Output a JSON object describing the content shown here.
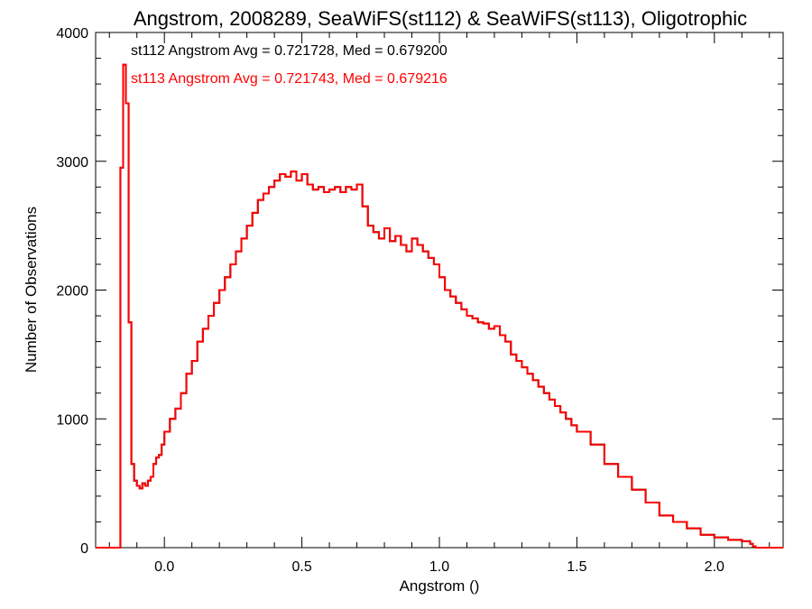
{
  "chart_data": {
    "type": "line",
    "title": "Angstrom, 2008289, SeaWiFS(st112) & SeaWiFS(st113), Oligotrophic",
    "xlabel": "Angstrom ()",
    "ylabel": "Number of Observations",
    "xlim": [
      -0.25,
      2.25
    ],
    "ylim": [
      0,
      4000
    ],
    "x_ticks": [
      0.0,
      0.5,
      1.0,
      1.5,
      2.0
    ],
    "x_tick_labels": [
      "0.0",
      "0.5",
      "1.0",
      "1.5",
      "2.0"
    ],
    "y_ticks": [
      0,
      1000,
      2000,
      3000,
      4000
    ],
    "y_tick_labels": [
      "0",
      "1000",
      "2000",
      "3000",
      "4000"
    ],
    "grid": false,
    "legend": "top-left",
    "annotations": [
      {
        "text": "st112 Angstrom Avg = 0.721728, Med = 0.679200",
        "color": "#000000"
      },
      {
        "text": "st113 Angstrom Avg = 0.721743, Med = 0.679216",
        "color": "#ff0000"
      }
    ],
    "series": [
      {
        "name": "st112",
        "color": "#000000",
        "step": true,
        "x": [
          -0.25,
          -0.17,
          -0.16,
          -0.15,
          -0.14,
          -0.13,
          -0.12,
          -0.11,
          -0.1,
          -0.09,
          -0.08,
          -0.07,
          -0.06,
          -0.05,
          -0.04,
          -0.03,
          -0.02,
          -0.01,
          0.0,
          0.02,
          0.04,
          0.06,
          0.08,
          0.1,
          0.12,
          0.14,
          0.16,
          0.18,
          0.2,
          0.22,
          0.24,
          0.26,
          0.28,
          0.3,
          0.32,
          0.34,
          0.36,
          0.38,
          0.4,
          0.42,
          0.44,
          0.46,
          0.48,
          0.5,
          0.52,
          0.54,
          0.56,
          0.58,
          0.6,
          0.62,
          0.64,
          0.66,
          0.68,
          0.7,
          0.72,
          0.74,
          0.76,
          0.78,
          0.8,
          0.82,
          0.84,
          0.86,
          0.88,
          0.9,
          0.92,
          0.94,
          0.96,
          0.98,
          1.0,
          1.02,
          1.04,
          1.06,
          1.08,
          1.1,
          1.12,
          1.14,
          1.16,
          1.18,
          1.2,
          1.22,
          1.24,
          1.26,
          1.28,
          1.3,
          1.32,
          1.34,
          1.36,
          1.38,
          1.4,
          1.42,
          1.44,
          1.46,
          1.48,
          1.5,
          1.55,
          1.6,
          1.65,
          1.7,
          1.75,
          1.8,
          1.85,
          1.9,
          1.95,
          2.0,
          2.05,
          2.1,
          2.13,
          2.14,
          2.15,
          2.25
        ],
        "y": [
          0,
          0,
          2950,
          3750,
          3450,
          1750,
          650,
          520,
          480,
          460,
          500,
          480,
          520,
          550,
          650,
          700,
          720,
          800,
          900,
          1000,
          1080,
          1200,
          1350,
          1450,
          1600,
          1700,
          1800,
          1900,
          2000,
          2100,
          2200,
          2300,
          2400,
          2500,
          2600,
          2700,
          2750,
          2800,
          2850,
          2900,
          2880,
          2920,
          2850,
          2900,
          2820,
          2780,
          2800,
          2760,
          2780,
          2800,
          2760,
          2800,
          2780,
          2820,
          2650,
          2500,
          2450,
          2400,
          2480,
          2380,
          2420,
          2350,
          2300,
          2400,
          2350,
          2300,
          2250,
          2200,
          2100,
          2000,
          1950,
          1900,
          1850,
          1800,
          1780,
          1750,
          1740,
          1700,
          1720,
          1650,
          1600,
          1500,
          1450,
          1400,
          1350,
          1300,
          1250,
          1200,
          1150,
          1100,
          1050,
          1000,
          950,
          900,
          800,
          650,
          550,
          450,
          350,
          250,
          200,
          150,
          100,
          80,
          60,
          50,
          30,
          10,
          0,
          0
        ]
      },
      {
        "name": "st113",
        "color": "#ff0000",
        "step": true,
        "x": [
          -0.25,
          -0.17,
          -0.16,
          -0.15,
          -0.14,
          -0.13,
          -0.12,
          -0.11,
          -0.1,
          -0.09,
          -0.08,
          -0.07,
          -0.06,
          -0.05,
          -0.04,
          -0.03,
          -0.02,
          -0.01,
          0.0,
          0.02,
          0.04,
          0.06,
          0.08,
          0.1,
          0.12,
          0.14,
          0.16,
          0.18,
          0.2,
          0.22,
          0.24,
          0.26,
          0.28,
          0.3,
          0.32,
          0.34,
          0.36,
          0.38,
          0.4,
          0.42,
          0.44,
          0.46,
          0.48,
          0.5,
          0.52,
          0.54,
          0.56,
          0.58,
          0.6,
          0.62,
          0.64,
          0.66,
          0.68,
          0.7,
          0.72,
          0.74,
          0.76,
          0.78,
          0.8,
          0.82,
          0.84,
          0.86,
          0.88,
          0.9,
          0.92,
          0.94,
          0.96,
          0.98,
          1.0,
          1.02,
          1.04,
          1.06,
          1.08,
          1.1,
          1.12,
          1.14,
          1.16,
          1.18,
          1.2,
          1.22,
          1.24,
          1.26,
          1.28,
          1.3,
          1.32,
          1.34,
          1.36,
          1.38,
          1.4,
          1.42,
          1.44,
          1.46,
          1.48,
          1.5,
          1.55,
          1.6,
          1.65,
          1.7,
          1.75,
          1.8,
          1.85,
          1.9,
          1.95,
          2.0,
          2.05,
          2.1,
          2.13,
          2.14,
          2.15,
          2.25
        ],
        "y": [
          0,
          0,
          2950,
          3750,
          3450,
          1750,
          650,
          520,
          480,
          460,
          500,
          480,
          520,
          550,
          650,
          700,
          720,
          800,
          900,
          1000,
          1080,
          1200,
          1350,
          1450,
          1600,
          1700,
          1800,
          1900,
          2000,
          2100,
          2200,
          2300,
          2400,
          2500,
          2600,
          2700,
          2750,
          2800,
          2850,
          2900,
          2880,
          2920,
          2850,
          2900,
          2820,
          2780,
          2800,
          2760,
          2780,
          2800,
          2760,
          2800,
          2780,
          2820,
          2650,
          2500,
          2450,
          2400,
          2480,
          2380,
          2420,
          2350,
          2300,
          2400,
          2350,
          2300,
          2250,
          2200,
          2100,
          2000,
          1950,
          1900,
          1850,
          1800,
          1780,
          1750,
          1740,
          1700,
          1720,
          1650,
          1600,
          1500,
          1450,
          1400,
          1350,
          1300,
          1250,
          1200,
          1150,
          1100,
          1050,
          1000,
          950,
          900,
          800,
          650,
          550,
          450,
          350,
          250,
          200,
          150,
          100,
          80,
          60,
          50,
          30,
          10,
          0,
          0
        ]
      }
    ]
  }
}
